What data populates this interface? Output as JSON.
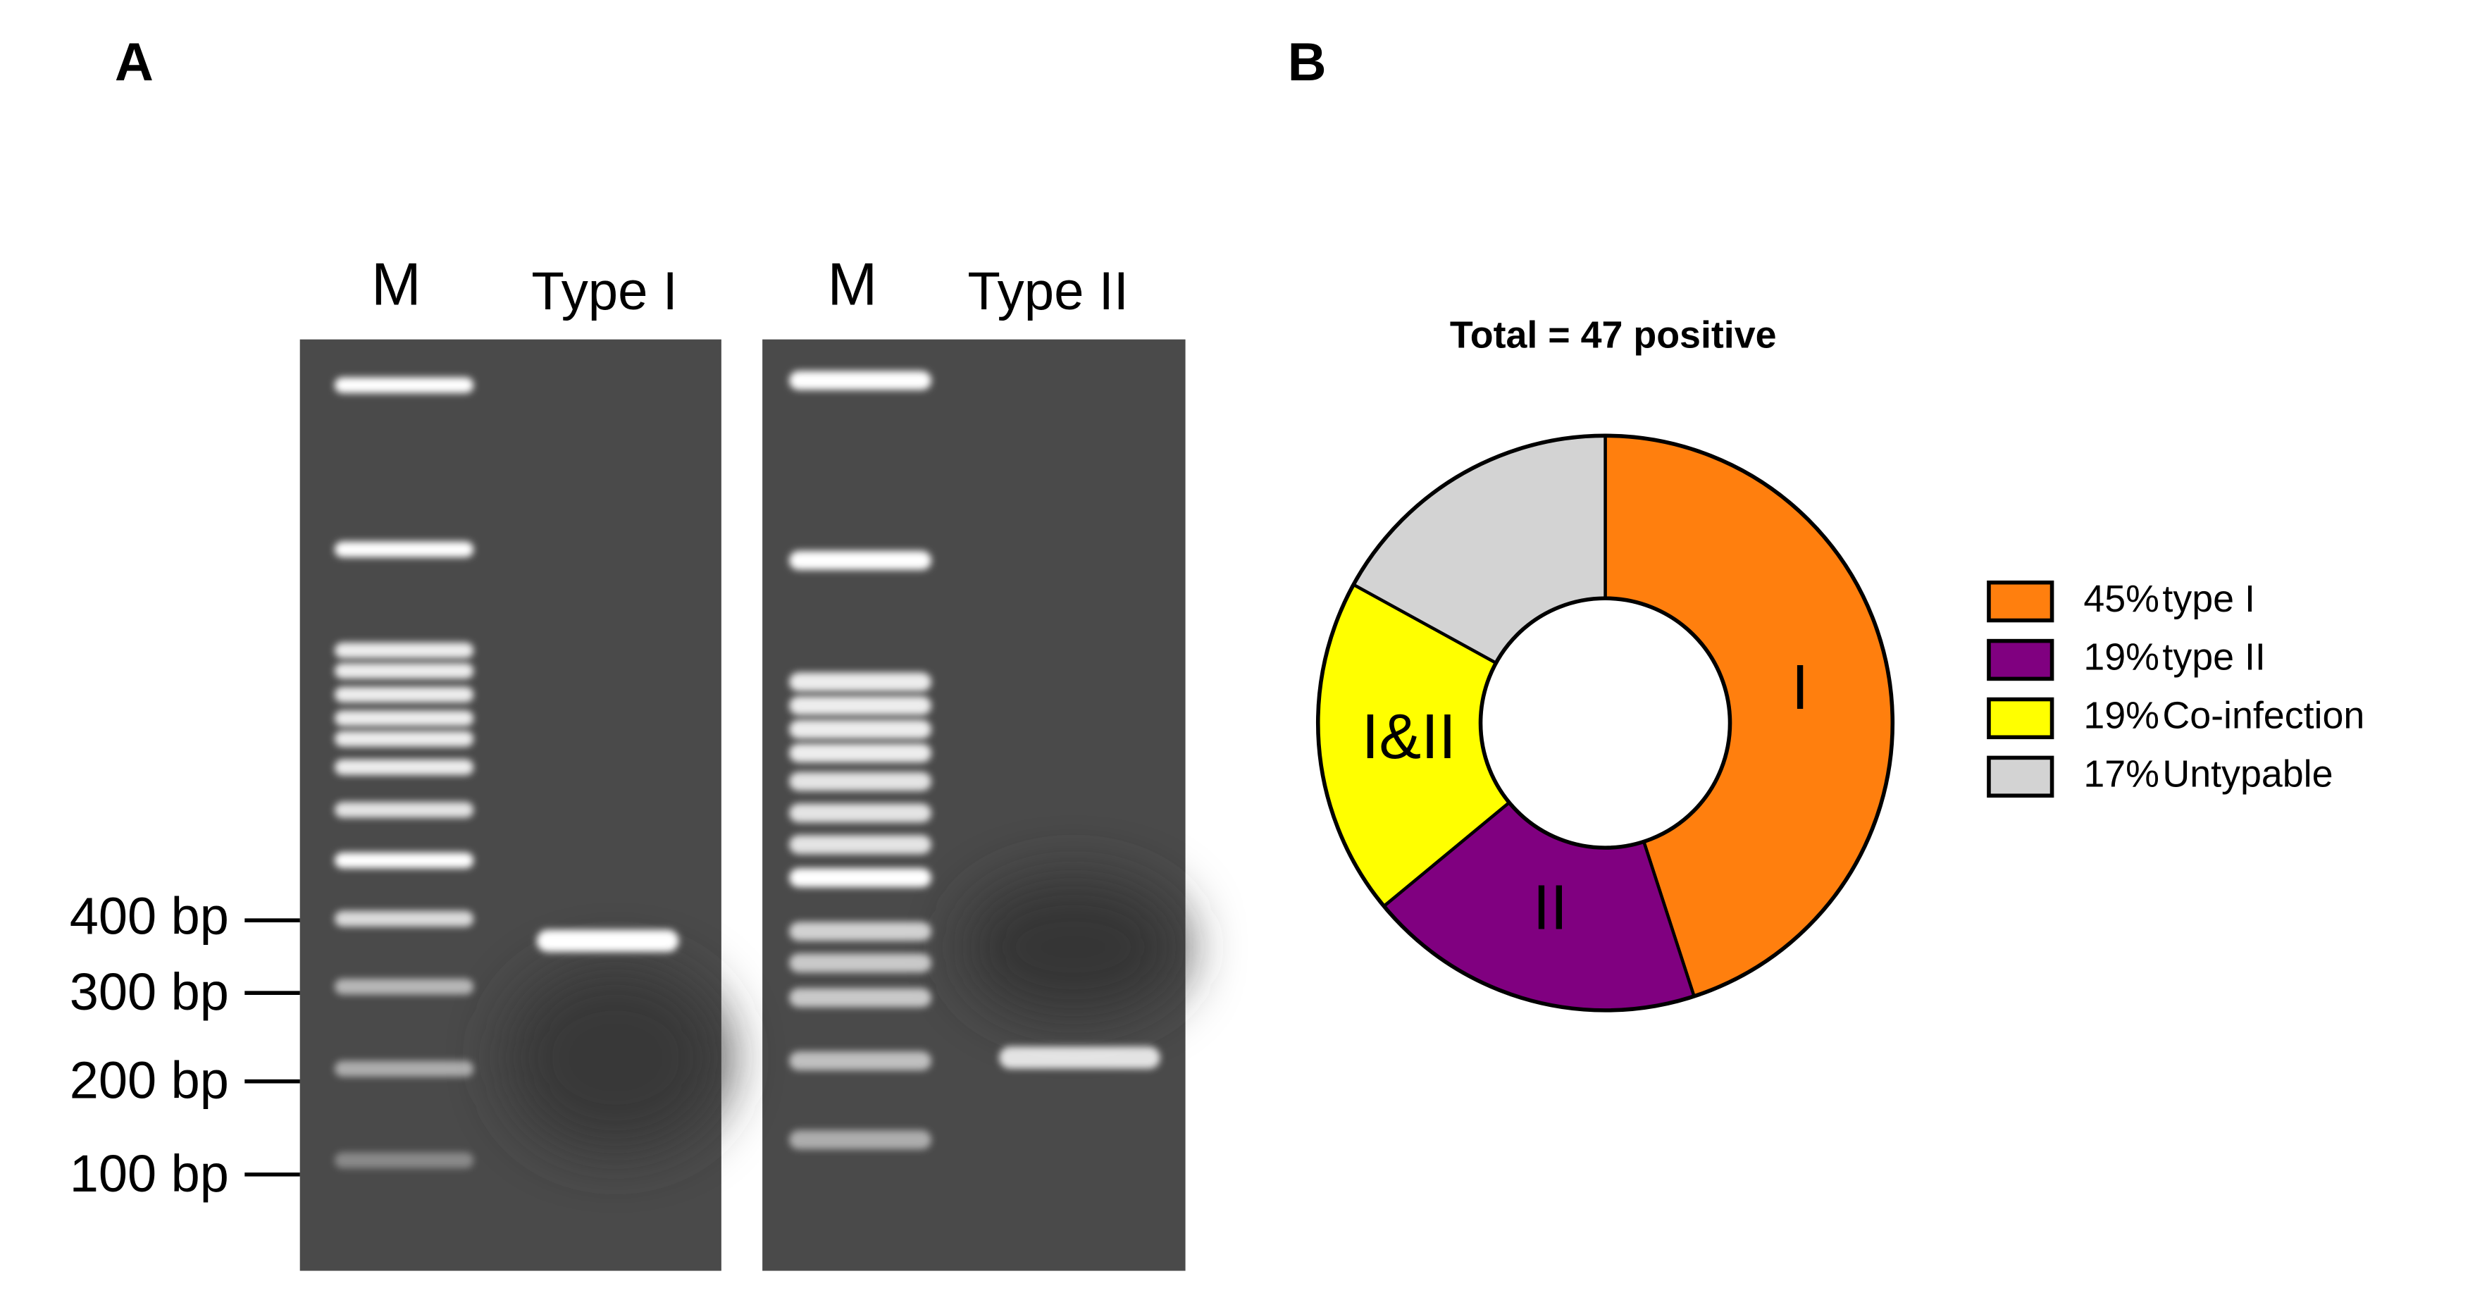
{
  "panel_a": {
    "label": "A",
    "lanes": [
      "M",
      "Type I",
      "M",
      "Type II"
    ],
    "markers": [
      "400 bp",
      "300 bp",
      "200 bp",
      "100 bp"
    ]
  },
  "panel_b": {
    "label": "B"
  },
  "chart_data": {
    "type": "pie",
    "title": "Total = 47 positive",
    "categories": [
      "type I",
      "type II",
      "Co-infection",
      "Untypable"
    ],
    "values": [
      45,
      19,
      19,
      17
    ],
    "value_labels": [
      "45%",
      "19%",
      "19%",
      "17%"
    ],
    "slice_labels": [
      "I",
      "II",
      "I&II",
      null
    ],
    "colors": [
      "#ff7f0e",
      "#800080",
      "#ffff00",
      "#d3d3d3"
    ],
    "legend": "right"
  }
}
